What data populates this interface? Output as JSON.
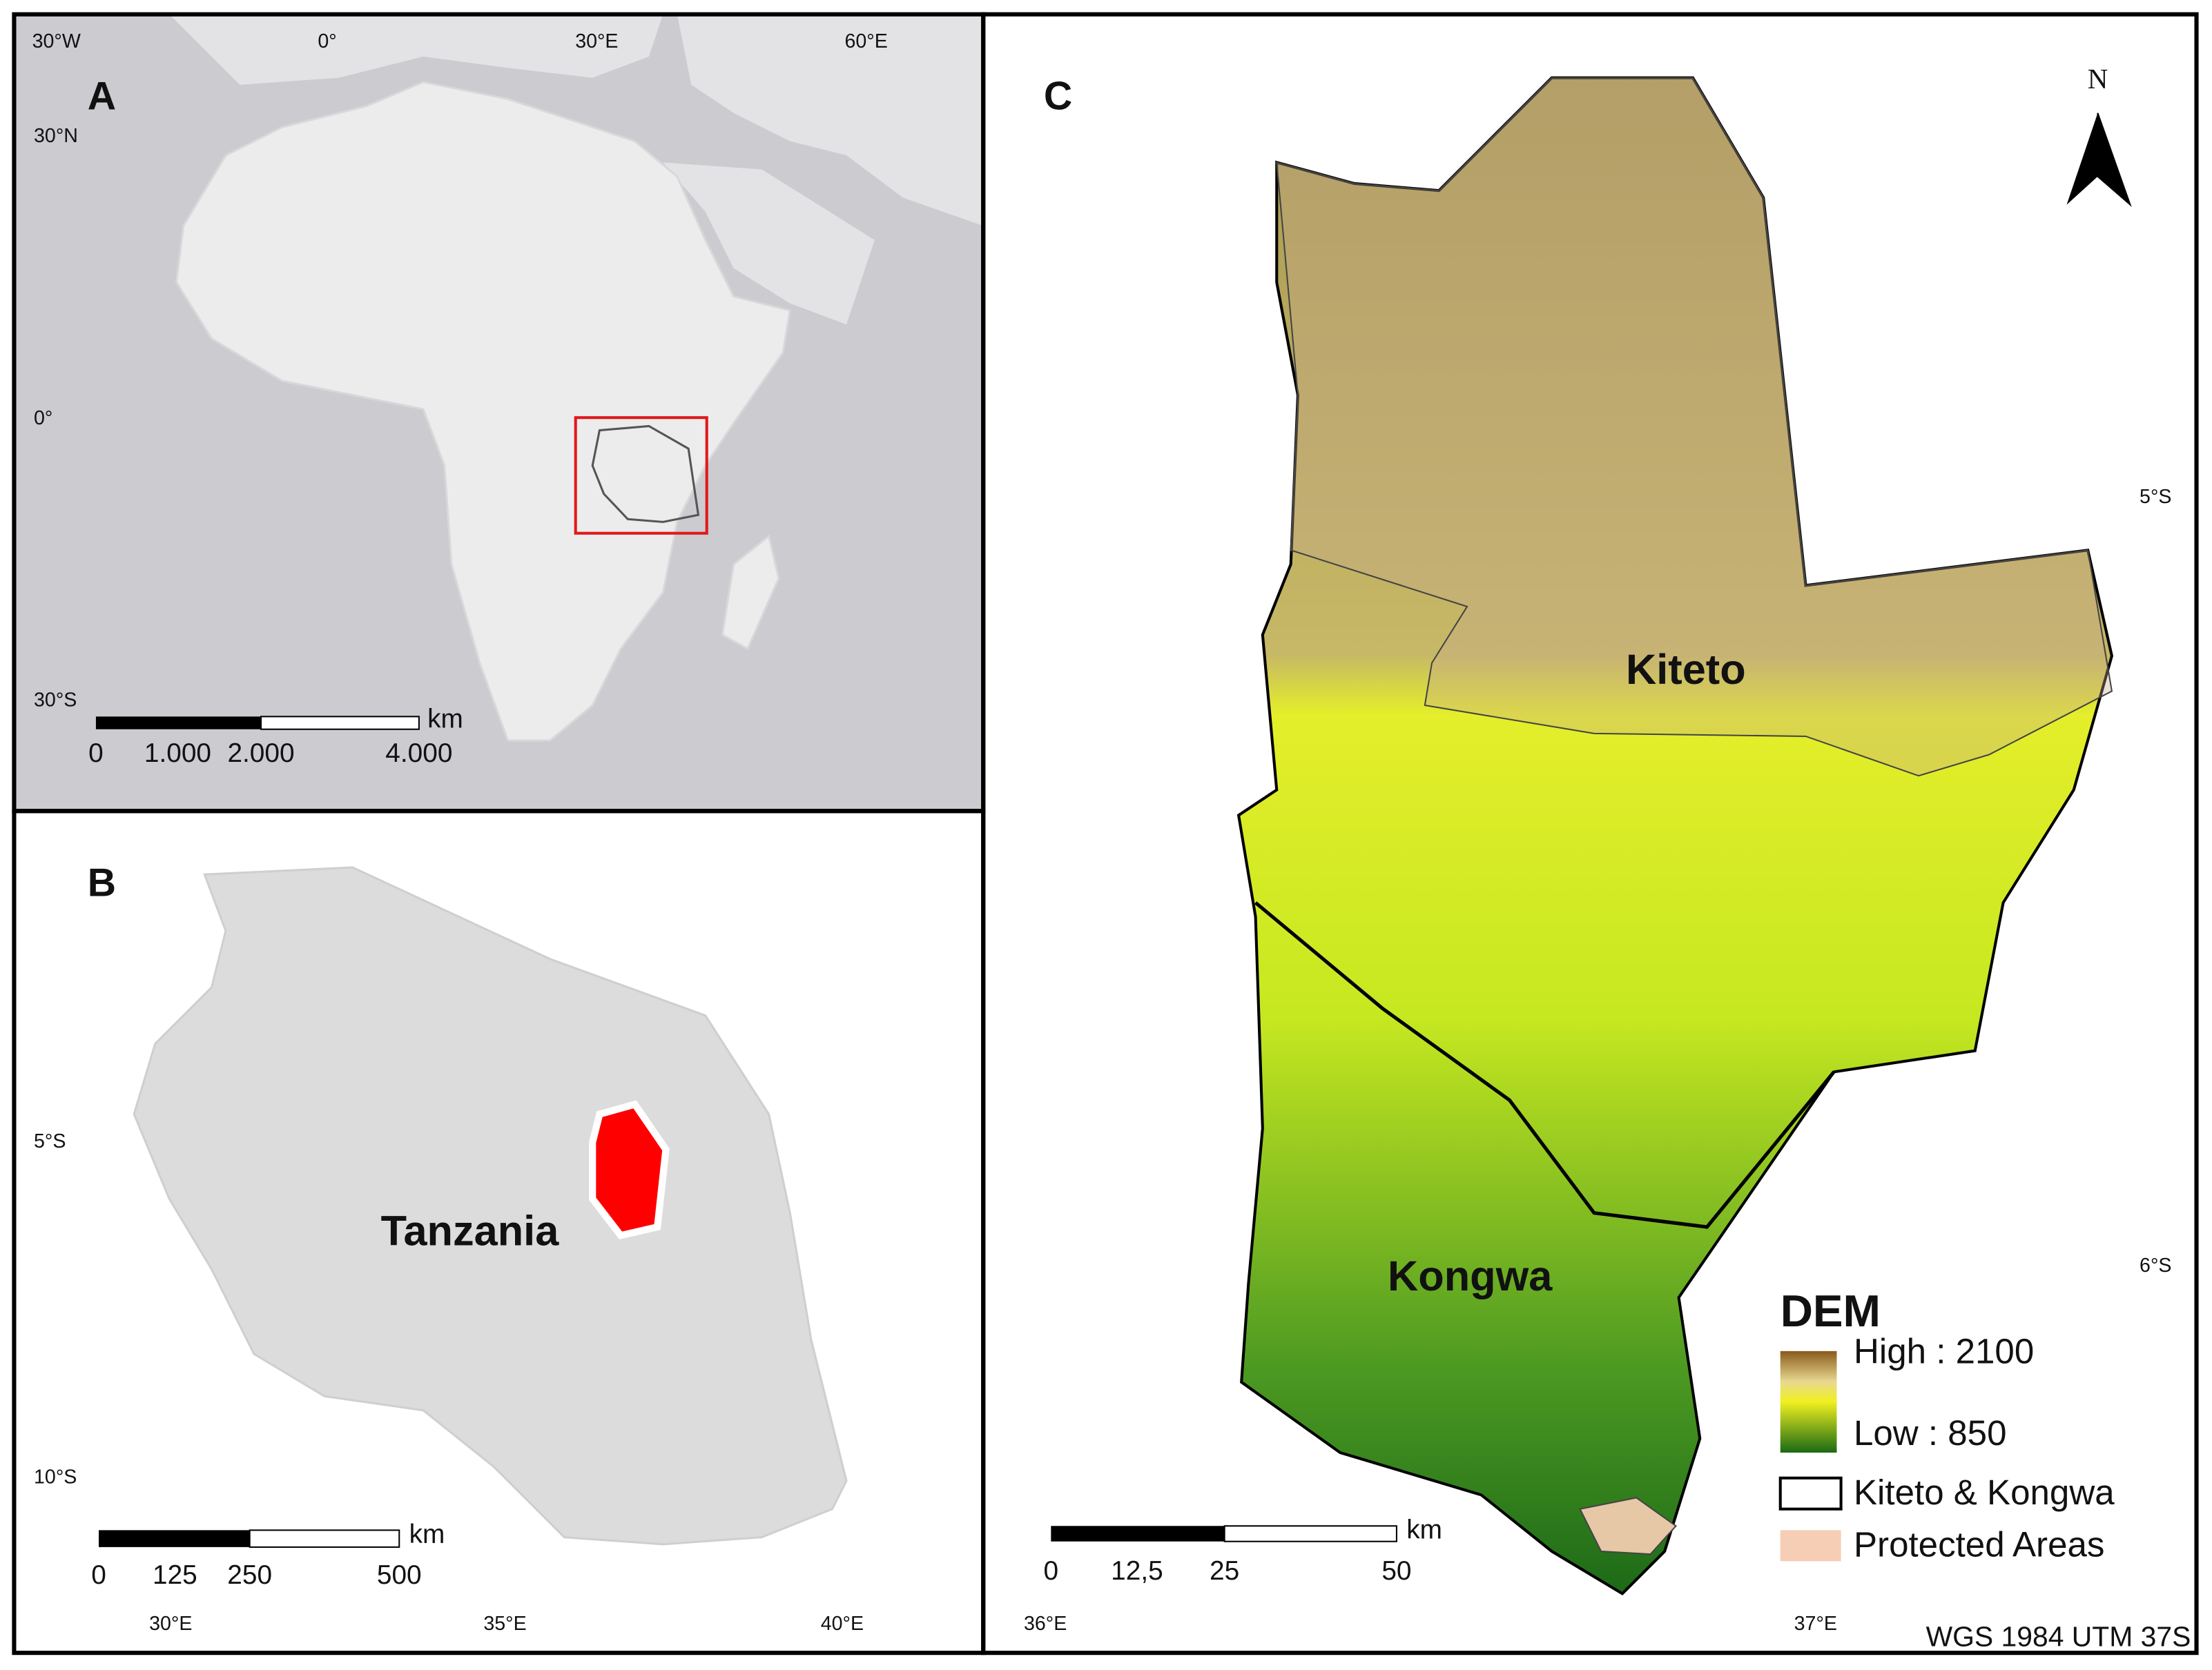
{
  "panel_a": {
    "label": "A",
    "lon_labels": [
      "30°W",
      "0°",
      "30°E",
      "60°E"
    ],
    "lat_labels": [
      "30°N",
      "0°",
      "30°S"
    ],
    "scale_bar": {
      "unit": "km",
      "labels": [
        "0",
        "1.000",
        "2.000",
        "4.000"
      ]
    }
  },
  "panel_b": {
    "label": "B",
    "place": "Tanzania",
    "lon_labels": [
      "30°E",
      "35°E",
      "40°E"
    ],
    "lat_labels": [
      "5°S",
      "10°S"
    ],
    "scale_bar": {
      "unit": "km",
      "labels": [
        "0",
        "125",
        "250",
        "500"
      ]
    }
  },
  "panel_c": {
    "label": "C",
    "north": "N",
    "places": [
      "Kiteto",
      "Kongwa"
    ],
    "lat_labels": [
      "5°S",
      "6°S"
    ],
    "lon_labels": [
      "36°E",
      "37°E"
    ],
    "scale_bar": {
      "unit": "km",
      "labels": [
        "0",
        "12,5",
        "25",
        "50"
      ]
    },
    "legend": {
      "title": "DEM",
      "high": "High : 2100",
      "low": "Low : 850",
      "items": [
        "Kiteto & Kongwa",
        "Protected Areas"
      ]
    },
    "projection": "WGS 1984 UTM 37S"
  }
}
